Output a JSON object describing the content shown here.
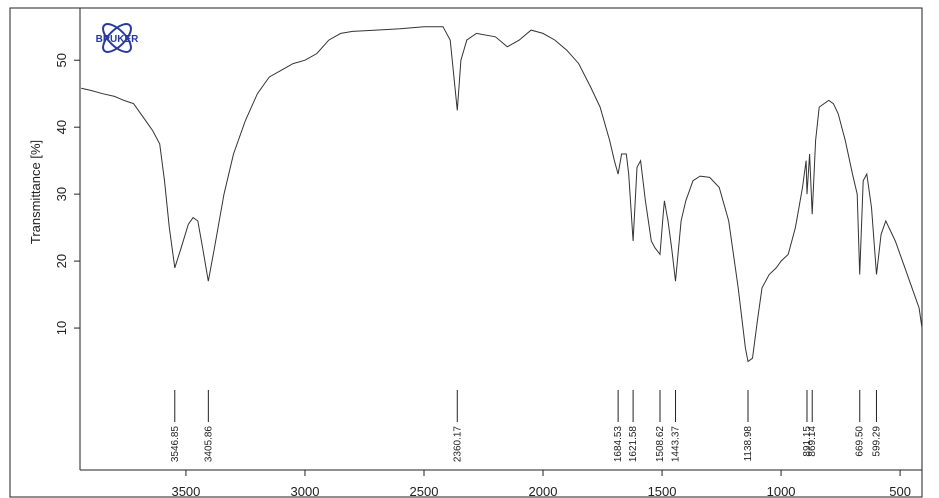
{
  "chart_data": {
    "type": "line",
    "logo": "BRUKER",
    "y_label": "Transmittance [%]",
    "xlim": [
      3945,
      408
    ],
    "ylim": [
      -11.2,
      57.8
    ],
    "xticks": [
      3500,
      3000,
      2500,
      2000,
      1500,
      1000,
      500
    ],
    "yticks": [
      10,
      20,
      30,
      40,
      50
    ],
    "color": "#333333",
    "x": [
      3940,
      3900,
      3850,
      3800,
      3760,
      3720,
      3680,
      3640,
      3610,
      3590,
      3570,
      3546.85,
      3520,
      3490,
      3470,
      3450,
      3430,
      3405.86,
      3380,
      3340,
      3300,
      3250,
      3200,
      3150,
      3100,
      3050,
      3000,
      2950,
      2900,
      2850,
      2800,
      2700,
      2600,
      2500,
      2420,
      2390,
      2360.17,
      2345,
      2320,
      2280,
      2200,
      2150,
      2100,
      2050,
      2000,
      1950,
      1900,
      1850,
      1800,
      1760,
      1720,
      1700,
      1684.53,
      1670,
      1650,
      1640,
      1621.58,
      1605,
      1590,
      1570,
      1545,
      1530,
      1508.62,
      1495,
      1490,
      1475,
      1460,
      1443.37,
      1420,
      1400,
      1370,
      1340,
      1300,
      1260,
      1220,
      1180,
      1150,
      1138.98,
      1120,
      1100,
      1080,
      1050,
      1020,
      1000,
      970,
      940,
      910,
      895,
      891.15,
      880,
      869.14,
      855,
      840,
      800,
      780,
      760,
      730,
      700,
      680,
      669.5,
      655,
      640,
      620,
      599.29,
      580,
      560,
      520,
      480,
      450,
      420,
      408
    ],
    "values": [
      45.8,
      45.5,
      45,
      44.6,
      44,
      43.5,
      41.5,
      39.5,
      37.5,
      32,
      25,
      19,
      22,
      25.5,
      26.5,
      26,
      22,
      17,
      22,
      30,
      36,
      41,
      45,
      47.5,
      48.5,
      49.5,
      50,
      51,
      53,
      54,
      54.3,
      54.5,
      54.7,
      55,
      55,
      53,
      42.5,
      50,
      53,
      54,
      53.5,
      52,
      53,
      54.5,
      54,
      53,
      51.5,
      49.5,
      46,
      43,
      38,
      35,
      33,
      36,
      36,
      33,
      23,
      34,
      35,
      29,
      23,
      22,
      21,
      27,
      29,
      26,
      22,
      17,
      26,
      29,
      32,
      32.7,
      32.5,
      31,
      26,
      16,
      7,
      5,
      5.5,
      11,
      16,
      18,
      19,
      20,
      21,
      25,
      31,
      35,
      30,
      36,
      27,
      38,
      43,
      44,
      43.5,
      42,
      38,
      33,
      30,
      18,
      32,
      33,
      28,
      18,
      24,
      26,
      23,
      19,
      16,
      13,
      10
    ],
    "peaks": [
      {
        "value": 3546.85,
        "label": "3546.85"
      },
      {
        "value": 3405.86,
        "label": "3405.86"
      },
      {
        "value": 2360.17,
        "label": "2360.17"
      },
      {
        "value": 1684.53,
        "label": "1684.53"
      },
      {
        "value": 1621.58,
        "label": "1621.58"
      },
      {
        "value": 1508.62,
        "label": "1508.62"
      },
      {
        "value": 1443.37,
        "label": "1443.37"
      },
      {
        "value": 1138.98,
        "label": "1138.98"
      },
      {
        "value": 891.15,
        "label": "891.15"
      },
      {
        "value": 869.14,
        "label": "869.14"
      },
      {
        "value": 669.5,
        "label": "669.50"
      },
      {
        "value": 599.29,
        "label": "599.29"
      }
    ]
  }
}
